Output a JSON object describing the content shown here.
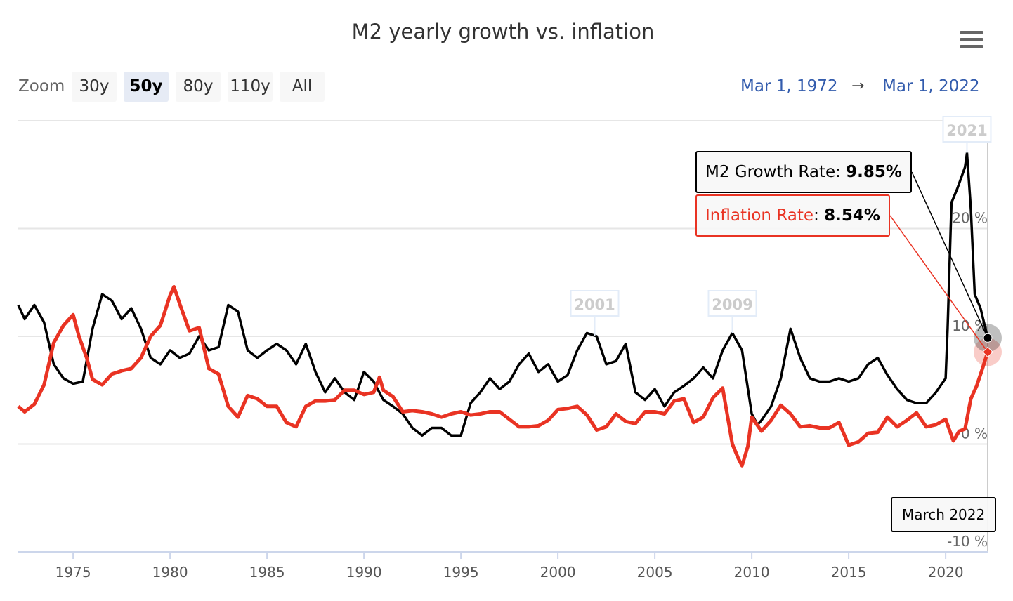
{
  "chart_data": {
    "type": "line",
    "title": "M2 yearly growth vs. inflation",
    "range_selector": {
      "label": "Zoom",
      "buttons": [
        "30y",
        "50y",
        "80y",
        "110y",
        "All"
      ],
      "selected": "50y"
    },
    "date_range": {
      "from": "Mar 1, 1972",
      "arrow": "→",
      "to": "Mar 1, 2022"
    },
    "xlim": [
      1972.17,
      2022.17
    ],
    "ylim": [
      -10,
      30
    ],
    "x_ticks": [
      "1975",
      "1980",
      "1985",
      "1990",
      "1995",
      "2000",
      "2005",
      "2010",
      "2015",
      "2020"
    ],
    "y_ticks": [
      "-10 %",
      "0 %",
      "10 %",
      "20 %"
    ],
    "grid": true,
    "colors": {
      "m2": "#000000",
      "inflation": "#e93323",
      "accent": "#335cad"
    },
    "flags": [
      {
        "x": 2001.9,
        "label": "2001"
      },
      {
        "x": 2009.0,
        "label": "2009"
      },
      {
        "x": 2021.1,
        "label": "2021"
      }
    ],
    "series": [
      {
        "name": "M2 Growth Rate",
        "color": "#000000",
        "x": [
          1972.17,
          1972.5,
          1973,
          1973.5,
          1974,
          1974.5,
          1975,
          1975.5,
          1976,
          1976.5,
          1977,
          1977.5,
          1978,
          1978.5,
          1979,
          1979.5,
          1980,
          1980.5,
          1981,
          1981.5,
          1982,
          1982.5,
          1983,
          1983.5,
          1984,
          1984.5,
          1985,
          1985.5,
          1986,
          1986.5,
          1987,
          1987.5,
          1988,
          1988.5,
          1989,
          1989.5,
          1990,
          1990.5,
          1991,
          1991.5,
          1992,
          1992.5,
          1993,
          1993.5,
          1994,
          1994.5,
          1995,
          1995.5,
          1996,
          1996.5,
          1997,
          1997.5,
          1998,
          1998.5,
          1999,
          1999.5,
          2000,
          2000.5,
          2001,
          2001.5,
          2002,
          2002.5,
          2003,
          2003.5,
          2004,
          2004.5,
          2005,
          2005.5,
          2006,
          2006.5,
          2007,
          2007.5,
          2008,
          2008.5,
          2009,
          2009.5,
          2010,
          2010.3,
          2010.5,
          2011,
          2011.5,
          2012,
          2012.5,
          2013,
          2013.5,
          2014,
          2014.5,
          2015,
          2015.5,
          2016,
          2016.5,
          2017,
          2017.5,
          2018,
          2018.5,
          2019,
          2019.5,
          2020,
          2020.1,
          2020.3,
          2020.6,
          2021,
          2021.1,
          2021.3,
          2021.5,
          2021.8,
          2022.17
        ],
        "values": [
          12.9,
          11.6,
          12.9,
          11.3,
          7.4,
          6.1,
          5.6,
          5.8,
          10.7,
          13.9,
          13.3,
          11.6,
          12.6,
          10.7,
          8.0,
          7.4,
          8.7,
          8.0,
          8.4,
          10.0,
          8.7,
          9.0,
          12.9,
          12.3,
          8.7,
          8.0,
          8.7,
          9.3,
          8.7,
          7.4,
          9.3,
          6.7,
          4.8,
          6.1,
          4.8,
          4.1,
          6.7,
          5.8,
          4.1,
          3.5,
          2.8,
          1.5,
          0.8,
          1.5,
          1.5,
          0.8,
          0.8,
          3.8,
          4.8,
          6.1,
          5.1,
          5.8,
          7.4,
          8.4,
          6.7,
          7.4,
          5.8,
          6.4,
          8.7,
          10.3,
          10.0,
          7.4,
          7.7,
          9.3,
          4.8,
          4.1,
          5.1,
          3.5,
          4.8,
          5.4,
          6.1,
          7.1,
          6.1,
          8.7,
          10.3,
          8.7,
          2.8,
          1.8,
          2.2,
          3.5,
          6.1,
          10.7,
          8.0,
          6.1,
          5.8,
          5.8,
          6.1,
          5.8,
          6.1,
          7.4,
          8.0,
          6.4,
          5.1,
          4.1,
          3.8,
          3.8,
          4.8,
          6.1,
          10.7,
          22.4,
          23.7,
          25.7,
          27.0,
          21.8,
          13.9,
          12.6,
          9.85
        ]
      },
      {
        "name": "Inflation Rate",
        "color": "#e93323",
        "x": [
          1972.17,
          1972.5,
          1973,
          1973.5,
          1974,
          1974.5,
          1975,
          1975.3,
          1975.7,
          1976,
          1976.5,
          1977,
          1977.5,
          1978,
          1978.5,
          1979,
          1979.5,
          1980,
          1980.2,
          1980.5,
          1981,
          1981.5,
          1982,
          1982.5,
          1983,
          1983.5,
          1984,
          1984.5,
          1985,
          1985.5,
          1986,
          1986.5,
          1987,
          1987.5,
          1988,
          1988.5,
          1989,
          1989.5,
          1990,
          1990.5,
          1990.8,
          1991,
          1991.5,
          1992,
          1992.5,
          1993,
          1993.5,
          1994,
          1994.5,
          1995,
          1995.5,
          1996,
          1996.5,
          1997,
          1997.5,
          1998,
          1998.5,
          1999,
          1999.5,
          2000,
          2000.5,
          2001,
          2001.5,
          2002,
          2002.5,
          2003,
          2003.5,
          2004,
          2004.5,
          2005,
          2005.5,
          2006,
          2006.5,
          2007,
          2007.5,
          2008,
          2008.5,
          2009,
          2009.3,
          2009.5,
          2009.8,
          2010,
          2010.5,
          2011,
          2011.5,
          2012,
          2012.5,
          2013,
          2013.5,
          2014,
          2014.5,
          2015,
          2015.5,
          2016,
          2016.5,
          2017,
          2017.5,
          2018,
          2018.5,
          2019,
          2019.5,
          2020,
          2020.4,
          2020.7,
          2021,
          2021.3,
          2021.6,
          2021.9,
          2022.17
        ],
        "values": [
          3.5,
          3.0,
          3.7,
          5.5,
          9.4,
          11.0,
          12.0,
          10.0,
          8.0,
          6.0,
          5.5,
          6.5,
          6.8,
          7.0,
          8.0,
          10.0,
          11.0,
          13.8,
          14.6,
          13.0,
          10.5,
          10.8,
          7.0,
          6.5,
          3.5,
          2.5,
          4.5,
          4.2,
          3.5,
          3.5,
          2.0,
          1.6,
          3.5,
          4.0,
          4.0,
          4.1,
          5.0,
          5.0,
          4.6,
          4.8,
          6.2,
          5.0,
          4.4,
          3.0,
          3.1,
          3.0,
          2.8,
          2.5,
          2.8,
          3.0,
          2.7,
          2.8,
          3.0,
          3.0,
          2.3,
          1.6,
          1.6,
          1.7,
          2.2,
          3.2,
          3.3,
          3.5,
          2.7,
          1.3,
          1.6,
          2.8,
          2.1,
          1.9,
          3.0,
          3.0,
          2.8,
          4.0,
          4.2,
          2.0,
          2.5,
          4.3,
          5.2,
          0.0,
          -1.3,
          -2.0,
          -0.2,
          2.5,
          1.2,
          2.2,
          3.6,
          2.8,
          1.6,
          1.7,
          1.5,
          1.5,
          2.0,
          -0.1,
          0.2,
          1.0,
          1.1,
          2.5,
          1.6,
          2.2,
          2.9,
          1.6,
          1.8,
          2.3,
          0.3,
          1.2,
          1.4,
          4.2,
          5.4,
          7.0,
          8.54
        ]
      }
    ],
    "tooltip": {
      "header": "March 2022",
      "rows": [
        {
          "label": "M2 Growth Rate",
          "sep": ": ",
          "value": "9.85%"
        },
        {
          "label": "Inflation Rate",
          "sep": ": ",
          "value": "8.54%"
        }
      ]
    }
  }
}
